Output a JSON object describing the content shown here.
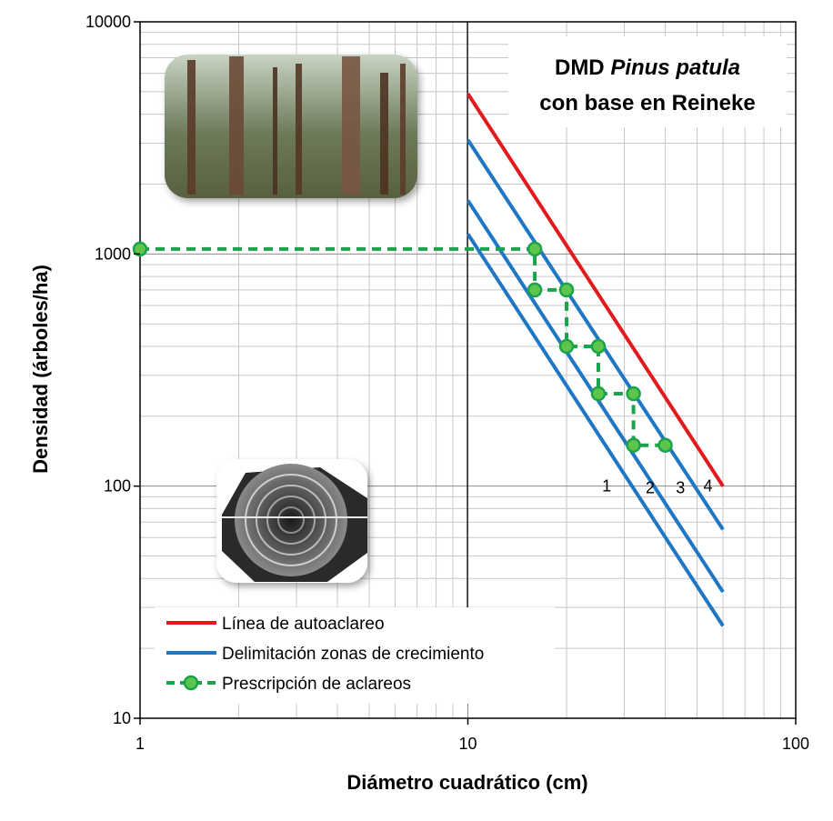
{
  "chart_data": {
    "type": "line",
    "title_main": "DMD ",
    "title_italic": "Pinus patula",
    "title_line2": "con base en Reineke",
    "xlabel": "Diámetro cuadrático (cm)",
    "ylabel": "Densidad (árboles/ha)",
    "x_scale": "log",
    "y_scale": "log",
    "xlim": [
      1,
      100
    ],
    "ylim": [
      10,
      10000
    ],
    "x_ticks": [
      {
        "value": 1,
        "label": "1"
      },
      {
        "value": 10,
        "label": "10"
      },
      {
        "value": 100,
        "label": "100"
      }
    ],
    "y_ticks": [
      {
        "value": 10,
        "label": "10"
      },
      {
        "value": 100,
        "label": "100"
      },
      {
        "value": 1000,
        "label": "1000"
      },
      {
        "value": 10000,
        "label": "10000"
      }
    ],
    "grid": true,
    "legend_position": "bottom-left",
    "series": [
      {
        "name": "Línea de autoaclareo",
        "color": "#e31a1c",
        "style": "solid",
        "points": [
          [
            10,
            4900
          ],
          [
            60,
            100
          ]
        ]
      },
      {
        "name": "Delimitación zonas de crecimiento",
        "color": "#1f77c4",
        "style": "solid",
        "points": [
          [
            10,
            3100
          ],
          [
            60,
            65
          ]
        ]
      },
      {
        "name": "",
        "color": "#1f77c4",
        "style": "solid",
        "points": [
          [
            10,
            1700
          ],
          [
            60,
            35
          ]
        ]
      },
      {
        "name": "",
        "color": "#1f77c4",
        "style": "solid",
        "points": [
          [
            10,
            1220
          ],
          [
            60,
            25
          ]
        ]
      },
      {
        "name": "Prescripción de aclareos",
        "color": "#1aa34a",
        "style": "dashed",
        "markers": true,
        "points": [
          [
            1,
            1050
          ],
          [
            16,
            1050
          ],
          [
            16,
            700
          ],
          [
            20,
            700
          ],
          [
            20,
            400
          ],
          [
            25,
            400
          ],
          [
            25,
            250
          ],
          [
            32,
            250
          ],
          [
            32,
            150
          ],
          [
            40,
            150
          ]
        ]
      }
    ],
    "zone_labels": [
      {
        "text": "1",
        "x": 26.5,
        "y": 95
      },
      {
        "text": "2",
        "x": 36,
        "y": 93
      },
      {
        "text": "3",
        "x": 44.5,
        "y": 93
      },
      {
        "text": "4",
        "x": 54,
        "y": 95
      }
    ]
  }
}
